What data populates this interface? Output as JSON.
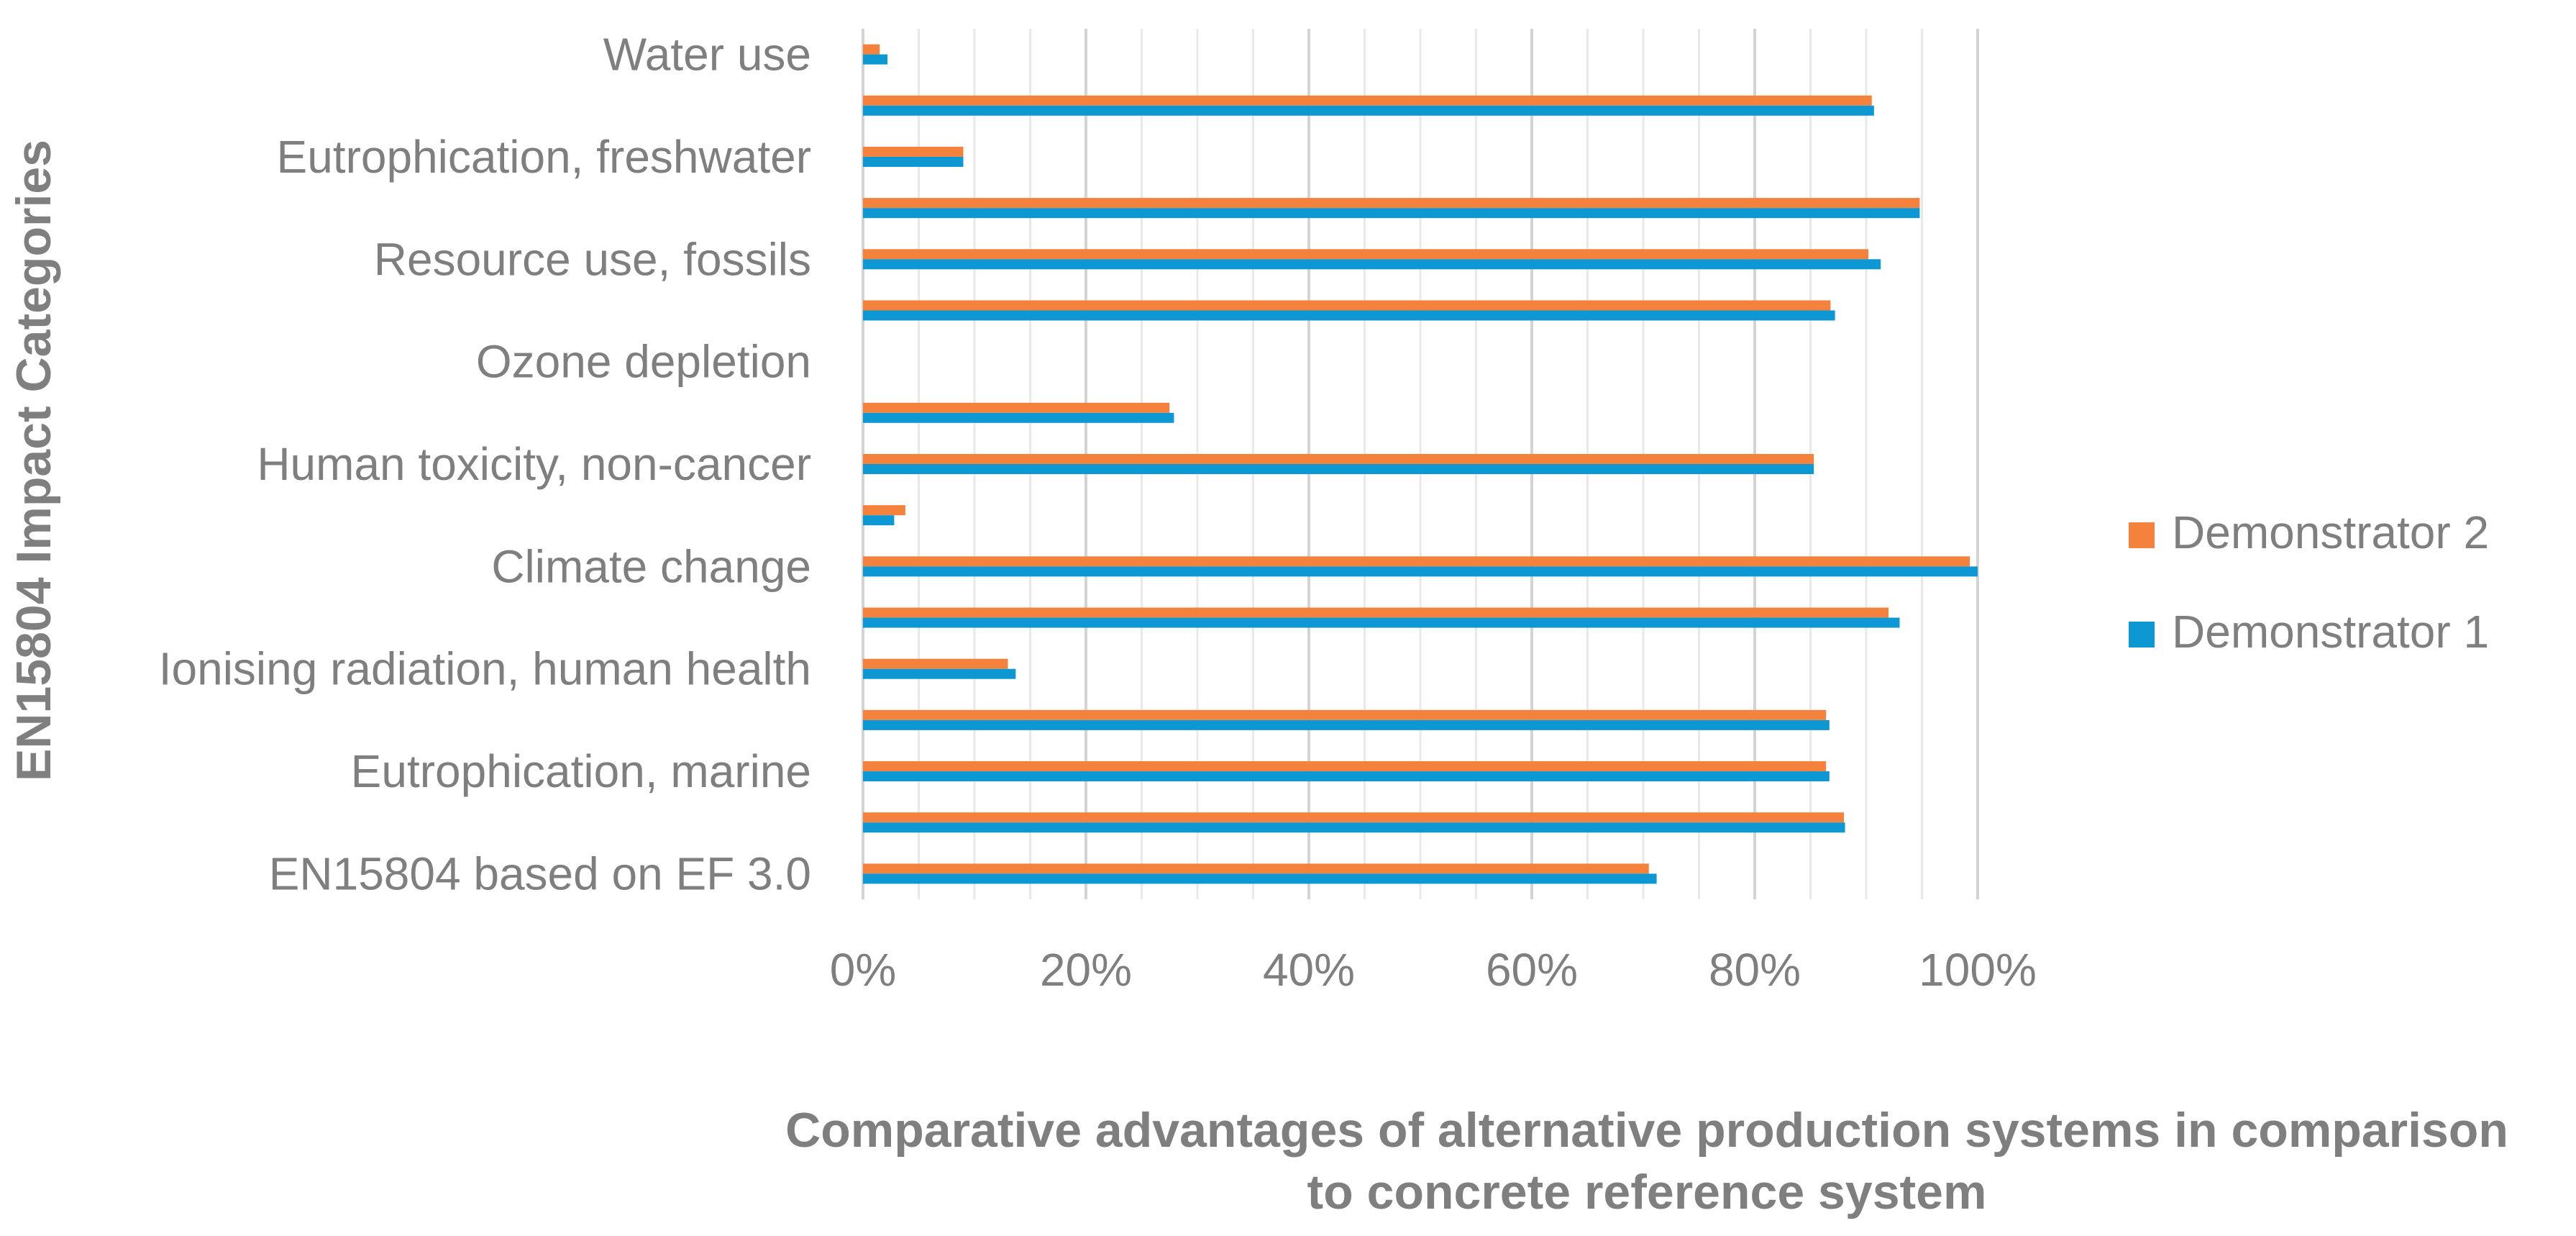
{
  "chart_data": {
    "type": "bar",
    "orientation": "horizontal",
    "title": "",
    "xlabel_line1": "Comparative advantages of alternative production systems in comparison",
    "xlabel_line2": "to concrete reference system",
    "ylabel": "EN15804 Impact Categories",
    "xlim": [
      0,
      1.0
    ],
    "xticks": [
      "0%",
      "20%",
      "40%",
      "60%",
      "80%",
      "100%"
    ],
    "grid": true,
    "legend_position": "right",
    "categories": [
      "Water use",
      "",
      "Eutrophication, freshwater",
      "",
      "Resource use, fossils",
      "",
      "Ozone depletion",
      "",
      "Human toxicity, non-cancer",
      "",
      "Climate change",
      "",
      "Ionising radiation, human health",
      "",
      "Eutrophication, marine",
      "",
      "EN15804 based on EF 3.0"
    ],
    "series": [
      {
        "name": "Demonstrator 2",
        "color": "#f4823c",
        "values": [
          0.015,
          0.905,
          0.09,
          0.948,
          0.902,
          0.868,
          0.0,
          0.275,
          0.853,
          0.038,
          0.993,
          0.92,
          0.13,
          0.864,
          0.864,
          0.88,
          0.705
        ]
      },
      {
        "name": "Demonstrator 1",
        "color": "#0e98d3",
        "values": [
          0.022,
          0.907,
          0.09,
          0.948,
          0.913,
          0.872,
          0.0,
          0.279,
          0.853,
          0.028,
          1.0,
          0.93,
          0.137,
          0.867,
          0.867,
          0.881,
          0.712
        ]
      }
    ]
  }
}
